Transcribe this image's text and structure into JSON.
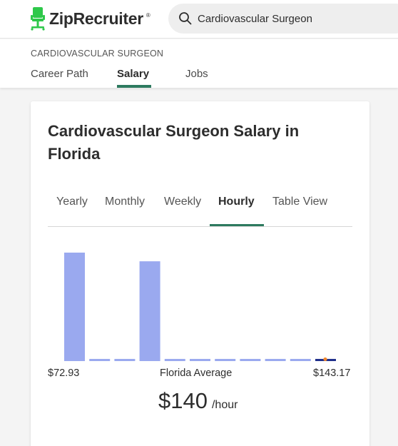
{
  "header": {
    "logo_text": "ZipRecruiter",
    "logo_mark": "®",
    "search_value": "Cardiovascular Surgeon",
    "brand_color": "#2ec84a"
  },
  "subnav": {
    "title": "CARDIOVASCULAR SURGEON",
    "tabs": [
      {
        "label": "Career Path",
        "active": false
      },
      {
        "label": "Salary",
        "active": true
      },
      {
        "label": "Jobs",
        "active": false
      }
    ]
  },
  "card": {
    "title": "Cardiovascular Surgeon Salary in Florida",
    "period_tabs": [
      {
        "label": "Yearly",
        "active": false
      },
      {
        "label": "Monthly",
        "active": false
      },
      {
        "label": "Weekly",
        "active": false
      },
      {
        "label": "Hourly",
        "active": true
      },
      {
        "label": "Table View",
        "active": false
      }
    ],
    "range_min": "$72.93",
    "range_label": "Florida Average",
    "range_max": "$143.17",
    "average_value": "$140",
    "average_unit": "/hour"
  },
  "chart_data": {
    "type": "bar",
    "categories": [
      "1",
      "2",
      "3",
      "4",
      "5",
      "6",
      "7",
      "8",
      "9",
      "10",
      "11"
    ],
    "values": [
      100,
      2,
      2,
      92,
      2,
      2,
      2,
      2,
      2,
      2,
      2
    ],
    "highlight_index": 10,
    "bar_color": "#9aa9ef",
    "highlight_color": "#1f2f8a",
    "marker_color": "#f0872e"
  }
}
